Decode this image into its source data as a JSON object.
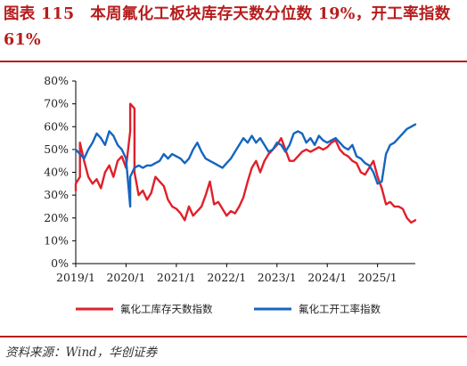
{
  "title": "图表 115　本周氟化工板块库存天数分位数 19%，开工率指数 61%",
  "source": "资料来源：Wind，华创证券",
  "colors": {
    "accent": "#b71c1c",
    "inventory": "#e0202a",
    "utilization": "#1565c0"
  },
  "chart_data": {
    "type": "line",
    "x_tick_labels": [
      "2019/1",
      "2020/1",
      "2021/1",
      "2022/1",
      "2023/1",
      "2024/1",
      "2025/1"
    ],
    "y_tick_labels": [
      "0%",
      "10%",
      "20%",
      "30%",
      "40%",
      "50%",
      "60%",
      "70%",
      "80%"
    ],
    "xlim": [
      "2019-01",
      "2025-10"
    ],
    "ylim": [
      0,
      80
    ],
    "legend_position": "bottom",
    "grid": false,
    "series": [
      {
        "name": "氟化工库存天数指数",
        "color": "#e0202a",
        "points": [
          [
            "2019-01",
            32
          ],
          [
            "2019-01",
            35
          ],
          [
            "2019-02",
            38
          ],
          [
            "2019-02",
            53
          ],
          [
            "2019-03",
            45
          ],
          [
            "2019-04",
            38
          ],
          [
            "2019-05",
            35
          ],
          [
            "2019-06",
            37
          ],
          [
            "2019-07",
            33
          ],
          [
            "2019-08",
            40
          ],
          [
            "2019-09",
            43
          ],
          [
            "2019-10",
            38
          ],
          [
            "2019-11",
            45
          ],
          [
            "2019-12",
            47
          ],
          [
            "2020-01",
            42
          ],
          [
            "2020-02",
            58
          ],
          [
            "2020-02",
            70
          ],
          [
            "2020-03",
            68
          ],
          [
            "2020-03",
            40
          ],
          [
            "2020-04",
            30
          ],
          [
            "2020-05",
            32
          ],
          [
            "2020-06",
            28
          ],
          [
            "2020-07",
            31
          ],
          [
            "2020-08",
            38
          ],
          [
            "2020-09",
            36
          ],
          [
            "2020-10",
            34
          ],
          [
            "2020-11",
            28
          ],
          [
            "2020-12",
            25
          ],
          [
            "2021-01",
            24
          ],
          [
            "2021-02",
            22
          ],
          [
            "2021-03",
            19
          ],
          [
            "2021-04",
            25
          ],
          [
            "2021-05",
            21
          ],
          [
            "2021-06",
            23
          ],
          [
            "2021-07",
            25
          ],
          [
            "2021-08",
            30
          ],
          [
            "2021-09",
            36
          ],
          [
            "2021-10",
            26
          ],
          [
            "2021-11",
            27
          ],
          [
            "2021-12",
            24
          ],
          [
            "2022-01",
            21
          ],
          [
            "2022-02",
            23
          ],
          [
            "2022-03",
            22
          ],
          [
            "2022-04",
            25
          ],
          [
            "2022-05",
            29
          ],
          [
            "2022-06",
            36
          ],
          [
            "2022-07",
            42
          ],
          [
            "2022-08",
            45
          ],
          [
            "2022-09",
            40
          ],
          [
            "2022-10",
            45
          ],
          [
            "2022-11",
            48
          ],
          [
            "2022-12",
            50
          ],
          [
            "2023-01",
            52
          ],
          [
            "2023-02",
            55
          ],
          [
            "2023-03",
            50
          ],
          [
            "2023-04",
            45
          ],
          [
            "2023-05",
            45
          ],
          [
            "2023-06",
            47
          ],
          [
            "2023-07",
            49
          ],
          [
            "2023-08",
            50
          ],
          [
            "2023-09",
            49
          ],
          [
            "2023-10",
            50
          ],
          [
            "2023-11",
            51
          ],
          [
            "2023-12",
            50
          ],
          [
            "2024-01",
            51
          ],
          [
            "2024-02",
            53
          ],
          [
            "2024-03",
            54
          ],
          [
            "2024-04",
            50
          ],
          [
            "2024-05",
            48
          ],
          [
            "2024-06",
            47
          ],
          [
            "2024-07",
            45
          ],
          [
            "2024-08",
            44
          ],
          [
            "2024-09",
            40
          ],
          [
            "2024-10",
            39
          ],
          [
            "2024-11",
            42
          ],
          [
            "2024-12",
            45
          ],
          [
            "2025-01",
            38
          ],
          [
            "2025-02",
            33
          ],
          [
            "2025-03",
            26
          ],
          [
            "2025-04",
            27
          ],
          [
            "2025-05",
            25
          ],
          [
            "2025-06",
            25
          ],
          [
            "2025-07",
            24
          ],
          [
            "2025-08",
            20
          ],
          [
            "2025-09",
            18
          ],
          [
            "2025-10",
            19
          ]
        ]
      },
      {
        "name": "氟化工开工率指数",
        "color": "#1565c0",
        "points": [
          [
            "2019-01",
            50
          ],
          [
            "2019-02",
            48
          ],
          [
            "2019-03",
            46
          ],
          [
            "2019-04",
            50
          ],
          [
            "2019-05",
            53
          ],
          [
            "2019-06",
            57
          ],
          [
            "2019-07",
            55
          ],
          [
            "2019-08",
            52
          ],
          [
            "2019-09",
            58
          ],
          [
            "2019-10",
            56
          ],
          [
            "2019-11",
            52
          ],
          [
            "2019-12",
            50
          ],
          [
            "2020-01",
            46
          ],
          [
            "2020-02",
            25
          ],
          [
            "2020-02",
            38
          ],
          [
            "2020-03",
            42
          ],
          [
            "2020-04",
            43
          ],
          [
            "2020-05",
            42
          ],
          [
            "2020-06",
            43
          ],
          [
            "2020-07",
            43
          ],
          [
            "2020-08",
            44
          ],
          [
            "2020-09",
            45
          ],
          [
            "2020-10",
            48
          ],
          [
            "2020-11",
            46
          ],
          [
            "2020-12",
            48
          ],
          [
            "2021-01",
            47
          ],
          [
            "2021-02",
            46
          ],
          [
            "2021-03",
            44
          ],
          [
            "2021-04",
            46
          ],
          [
            "2021-05",
            50
          ],
          [
            "2021-06",
            53
          ],
          [
            "2021-07",
            49
          ],
          [
            "2021-08",
            46
          ],
          [
            "2021-09",
            45
          ],
          [
            "2021-10",
            44
          ],
          [
            "2021-11",
            43
          ],
          [
            "2021-12",
            42
          ],
          [
            "2022-01",
            44
          ],
          [
            "2022-02",
            46
          ],
          [
            "2022-03",
            49
          ],
          [
            "2022-04",
            52
          ],
          [
            "2022-05",
            55
          ],
          [
            "2022-06",
            53
          ],
          [
            "2022-07",
            56
          ],
          [
            "2022-08",
            53
          ],
          [
            "2022-09",
            55
          ],
          [
            "2022-10",
            52
          ],
          [
            "2022-11",
            49
          ],
          [
            "2022-12",
            50
          ],
          [
            "2023-01",
            53
          ],
          [
            "2023-02",
            52
          ],
          [
            "2023-03",
            49
          ],
          [
            "2023-04",
            52
          ],
          [
            "2023-05",
            57
          ],
          [
            "2023-06",
            58
          ],
          [
            "2023-07",
            57
          ],
          [
            "2023-08",
            53
          ],
          [
            "2023-09",
            55
          ],
          [
            "2023-10",
            52
          ],
          [
            "2023-11",
            56
          ],
          [
            "2023-12",
            54
          ],
          [
            "2024-01",
            53
          ],
          [
            "2024-02",
            54
          ],
          [
            "2024-03",
            55
          ],
          [
            "2024-04",
            53
          ],
          [
            "2024-05",
            51
          ],
          [
            "2024-06",
            50
          ],
          [
            "2024-07",
            52
          ],
          [
            "2024-08",
            47
          ],
          [
            "2024-09",
            46
          ],
          [
            "2024-10",
            44
          ],
          [
            "2024-11",
            43
          ],
          [
            "2024-12",
            40
          ],
          [
            "2025-01",
            35
          ],
          [
            "2025-02",
            36
          ],
          [
            "2025-03",
            48
          ],
          [
            "2025-04",
            52
          ],
          [
            "2025-05",
            53
          ],
          [
            "2025-06",
            55
          ],
          [
            "2025-07",
            57
          ],
          [
            "2025-08",
            59
          ],
          [
            "2025-09",
            60
          ],
          [
            "2025-10",
            61
          ]
        ]
      }
    ]
  }
}
